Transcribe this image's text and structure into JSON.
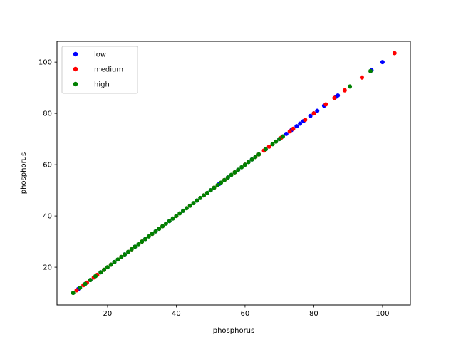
{
  "chart_data": {
    "type": "scatter",
    "title": "",
    "xlabel": "phosphorus",
    "ylabel": "phosphorus",
    "xlim": [
      5.3,
      108.1
    ],
    "ylim": [
      5.3,
      108.1
    ],
    "xticks": [
      20,
      40,
      60,
      80,
      100
    ],
    "yticks": [
      20,
      40,
      60,
      80,
      100
    ],
    "grid": false,
    "legend_position": "top-left",
    "series": [
      {
        "name": "low",
        "color": "#0000ff",
        "x": [
          11.5,
          15,
          18,
          22,
          25,
          28,
          31,
          34,
          38,
          42,
          46,
          50,
          52.5,
          55,
          58,
          62,
          66,
          70,
          72,
          73.5,
          75,
          76,
          77,
          79,
          80,
          81,
          83,
          86.5,
          87,
          96.8,
          100
        ],
        "y": [
          11.5,
          15,
          18,
          22,
          25,
          28,
          31,
          34,
          38,
          42,
          46,
          50,
          52.5,
          55,
          58,
          62,
          66,
          70,
          72,
          73.5,
          75,
          76,
          77,
          79,
          80,
          81,
          83,
          86.5,
          87,
          96.8,
          100
        ]
      },
      {
        "name": "medium",
        "color": "#ff0000",
        "x": [
          11,
          13,
          14,
          16,
          17,
          19,
          21,
          24,
          27,
          30,
          33,
          36,
          40,
          44,
          48,
          51,
          54,
          57,
          60,
          63,
          64,
          65.5,
          67,
          70.5,
          73,
          74,
          77.5,
          80,
          83.5,
          86,
          89,
          94,
          103.5
        ],
        "y": [
          11,
          13,
          14,
          16,
          17,
          19,
          21,
          24,
          27,
          30,
          33,
          36,
          40,
          44,
          48,
          51,
          54,
          57,
          60,
          63,
          64,
          65.5,
          67,
          70.5,
          73,
          74,
          77.5,
          80,
          83.5,
          86,
          89,
          94,
          103.5
        ]
      },
      {
        "name": "high",
        "color": "#008000",
        "x": [
          10,
          12,
          13.5,
          15,
          16.5,
          18,
          19,
          20,
          21,
          22,
          23,
          24,
          25,
          26,
          27,
          28,
          29,
          30,
          31,
          32,
          33,
          34,
          35,
          36,
          37,
          38,
          39,
          40,
          41,
          42,
          43,
          44,
          45,
          46,
          47,
          48,
          49,
          50,
          51,
          52,
          53,
          54,
          55,
          56,
          57,
          58,
          59,
          60,
          61,
          62,
          63,
          64,
          66,
          68,
          69,
          70,
          71,
          90.5,
          96.5
        ],
        "y": [
          10,
          12,
          13.5,
          15,
          16.5,
          18,
          19,
          20,
          21,
          22,
          23,
          24,
          25,
          26,
          27,
          28,
          29,
          30,
          31,
          32,
          33,
          34,
          35,
          36,
          37,
          38,
          39,
          40,
          41,
          42,
          43,
          44,
          45,
          46,
          47,
          48,
          49,
          50,
          51,
          52,
          53,
          54,
          55,
          56,
          57,
          58,
          59,
          60,
          61,
          62,
          63,
          64,
          66,
          68,
          69,
          70,
          71,
          90.5,
          96.5
        ]
      }
    ]
  }
}
